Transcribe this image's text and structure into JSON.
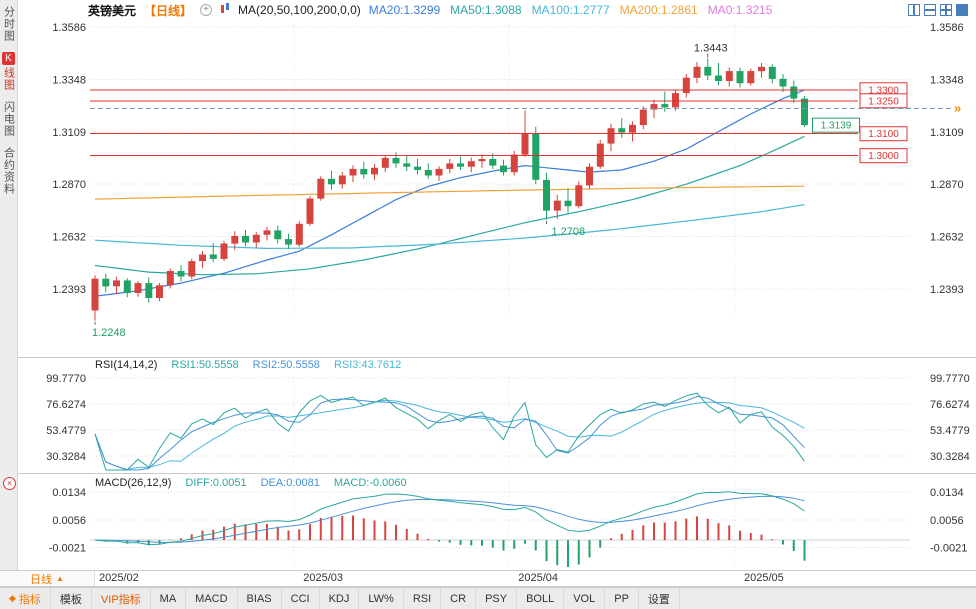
{
  "colors": {
    "up": "#d5443e",
    "down": "#21a366",
    "hline": "#e03333",
    "dashed": "#8096ad",
    "marker_orange": "#f08c00",
    "grid": "#dcdcdc",
    "axis_text": "#333333"
  },
  "header": {
    "symbol": "英镑美元",
    "timeframe": "【日线】",
    "ma_formula": "MA(20,50,100,200,0,0)",
    "ma_values": [
      {
        "name": "MA20",
        "label": "MA20:1.3299",
        "color": "#3b7dd8"
      },
      {
        "name": "MA50",
        "label": "MA50:1.3088",
        "color": "#2aa7a0"
      },
      {
        "name": "MA100",
        "label": "MA100:1.2777",
        "color": "#49b8d8"
      },
      {
        "name": "MA200",
        "label": "MA200:1.2861",
        "color": "#f2a23c"
      },
      {
        "name": "MA0",
        "label": "MA0:1.3215",
        "color": "#e07ae0"
      }
    ]
  },
  "sidebar": {
    "items": [
      {
        "key": "time-chart",
        "label": "分时图",
        "active": false
      },
      {
        "key": "kline-chart",
        "label": "K线图",
        "active": true
      },
      {
        "key": "lightning-chart",
        "label": "闪电图",
        "active": false
      },
      {
        "key": "contract-info",
        "label": "合约资料",
        "active": false
      }
    ]
  },
  "rsi_header": {
    "formula": "RSI(14,14,2)",
    "rsi1": "RSI1:50.5558",
    "rsi2": "RSI2:50.5558",
    "rsi3": "RSI3:43.7612"
  },
  "macd_header": {
    "formula": "MACD(26,12,9)",
    "diff": "DIFF:0.0051",
    "dea": "DEA:0.0081",
    "macd": "MACD:-0.0060"
  },
  "bottom": {
    "tf_label": "日线"
  },
  "toolbar": {
    "items": [
      {
        "key": "indicators",
        "label": "指标",
        "style": "active"
      },
      {
        "key": "templates",
        "label": "模板",
        "style": ""
      },
      {
        "key": "vip-indicators",
        "label": "VIP指标",
        "style": "vip"
      },
      {
        "key": "ma",
        "label": "MA",
        "style": ""
      },
      {
        "key": "macd",
        "label": "MACD",
        "style": ""
      },
      {
        "key": "bias",
        "label": "BIAS",
        "style": ""
      },
      {
        "key": "cci",
        "label": "CCI",
        "style": ""
      },
      {
        "key": "kdj",
        "label": "KDJ",
        "style": ""
      },
      {
        "key": "lw",
        "label": "LW%",
        "style": ""
      },
      {
        "key": "rsi",
        "label": "RSI",
        "style": ""
      },
      {
        "key": "cr",
        "label": "CR",
        "style": ""
      },
      {
        "key": "psy",
        "label": "PSY",
        "style": ""
      },
      {
        "key": "boll",
        "label": "BOLL",
        "style": ""
      },
      {
        "key": "vol",
        "label": "VOL",
        "style": ""
      },
      {
        "key": "pp",
        "label": "PP",
        "style": ""
      },
      {
        "key": "settings",
        "label": "设置",
        "style": ""
      }
    ]
  },
  "chart_data": {
    "type": "candlestick",
    "symbol": "英镑美元 (GBP/USD)",
    "timeframe": "日线",
    "x_labels": [
      "2025/02",
      "2025/03",
      "2025/04",
      "2025/05"
    ],
    "x_label_indices": [
      0,
      19,
      39,
      60
    ],
    "main": {
      "axis_levels": [
        "1.3586",
        "1.3348",
        "1.3109",
        "1.2870",
        "1.2632",
        "1.2393"
      ],
      "hlines": [
        1.33,
        1.325,
        1.31,
        1.3
      ],
      "dashed_line": 1.3215,
      "current_price": 1.3139,
      "annotations": [
        {
          "i": 57,
          "v": 1.3443,
          "pos": "above",
          "color": "#333333"
        },
        {
          "i": 0,
          "v": 1.2248,
          "pos": "below",
          "color": "#1f9e63"
        },
        {
          "i": 42,
          "v": 1.2708,
          "pos": "below",
          "color": "#1f9e63"
        }
      ],
      "candles": [
        [
          1.2295,
          1.2455,
          1.2248,
          1.244
        ],
        [
          1.244,
          1.2462,
          1.2378,
          1.2405
        ],
        [
          1.2405,
          1.2448,
          1.2372,
          1.2432
        ],
        [
          1.2432,
          1.2442,
          1.2355,
          1.2375
        ],
        [
          1.2375,
          1.243,
          1.2358,
          1.242
        ],
        [
          1.242,
          1.2446,
          1.233,
          1.2352
        ],
        [
          1.2352,
          1.242,
          1.2338,
          1.241
        ],
        [
          1.241,
          1.2486,
          1.2396,
          1.2475
        ],
        [
          1.2475,
          1.2502,
          1.2428,
          1.245
        ],
        [
          1.245,
          1.2532,
          1.2438,
          1.252
        ],
        [
          1.252,
          1.2566,
          1.2488,
          1.255
        ],
        [
          1.255,
          1.2602,
          1.2515,
          1.253
        ],
        [
          1.253,
          1.2612,
          1.252,
          1.26
        ],
        [
          1.26,
          1.2656,
          1.257,
          1.2635
        ],
        [
          1.2635,
          1.2662,
          1.2588,
          1.2605
        ],
        [
          1.2605,
          1.2652,
          1.258,
          1.264
        ],
        [
          1.264,
          1.2676,
          1.2614,
          1.266
        ],
        [
          1.266,
          1.2682,
          1.26,
          1.262
        ],
        [
          1.262,
          1.2645,
          1.2575,
          1.2595
        ],
        [
          1.2595,
          1.2702,
          1.2585,
          1.269
        ],
        [
          1.269,
          1.2816,
          1.268,
          1.2805
        ],
        [
          1.2805,
          1.2906,
          1.2795,
          1.2895
        ],
        [
          1.2895,
          1.2932,
          1.2845,
          1.287
        ],
        [
          1.287,
          1.2926,
          1.285,
          1.291
        ],
        [
          1.291,
          1.2956,
          1.288,
          1.294
        ],
        [
          1.294,
          1.2972,
          1.2895,
          1.2915
        ],
        [
          1.2915,
          1.2962,
          1.289,
          1.2945
        ],
        [
          1.2945,
          1.3002,
          1.2925,
          1.299
        ],
        [
          1.299,
          1.3016,
          1.2945,
          1.2965
        ],
        [
          1.2965,
          1.3,
          1.293,
          1.295
        ],
        [
          1.295,
          1.2986,
          1.2915,
          1.2935
        ],
        [
          1.2935,
          1.2966,
          1.2895,
          1.291
        ],
        [
          1.291,
          1.2952,
          1.2885,
          1.294
        ],
        [
          1.294,
          1.2986,
          1.292,
          1.2965
        ],
        [
          1.2965,
          1.2996,
          1.2935,
          1.295
        ],
        [
          1.295,
          1.2992,
          1.2925,
          1.2975
        ],
        [
          1.2975,
          1.3006,
          1.2945,
          1.2985
        ],
        [
          1.2985,
          1.3012,
          1.294,
          1.2955
        ],
        [
          1.2955,
          1.2982,
          1.291,
          1.2925
        ],
        [
          1.2925,
          1.3022,
          1.291,
          1.3005
        ],
        [
          1.3005,
          1.3207,
          1.2995,
          1.31
        ],
        [
          1.31,
          1.3132,
          1.287,
          1.289
        ],
        [
          1.289,
          1.2922,
          1.2708,
          1.275
        ],
        [
          1.275,
          1.2822,
          1.2712,
          1.2795
        ],
        [
          1.2795,
          1.2852,
          1.274,
          1.277
        ],
        [
          1.277,
          1.2882,
          1.276,
          1.2865
        ],
        [
          1.2865,
          1.2966,
          1.285,
          1.295
        ],
        [
          1.295,
          1.3072,
          1.294,
          1.3055
        ],
        [
          1.3055,
          1.3146,
          1.302,
          1.3125
        ],
        [
          1.3125,
          1.3172,
          1.308,
          1.3105
        ],
        [
          1.3105,
          1.3156,
          1.3065,
          1.314
        ],
        [
          1.314,
          1.3226,
          1.312,
          1.321
        ],
        [
          1.321,
          1.3256,
          1.317,
          1.3235
        ],
        [
          1.3235,
          1.3292,
          1.32,
          1.322
        ],
        [
          1.322,
          1.3302,
          1.3205,
          1.3285
        ],
        [
          1.3285,
          1.3372,
          1.3265,
          1.3355
        ],
        [
          1.3355,
          1.3426,
          1.333,
          1.3405
        ],
        [
          1.3405,
          1.3443,
          1.3345,
          1.3365
        ],
        [
          1.3365,
          1.3422,
          1.332,
          1.334
        ],
        [
          1.334,
          1.3402,
          1.3315,
          1.3385
        ],
        [
          1.3385,
          1.3402,
          1.331,
          1.333
        ],
        [
          1.333,
          1.3396,
          1.332,
          1.3385
        ],
        [
          1.3385,
          1.3422,
          1.3355,
          1.3405
        ],
        [
          1.3405,
          1.3416,
          1.333,
          1.335
        ],
        [
          1.335,
          1.3372,
          1.329,
          1.3315
        ],
        [
          1.3315,
          1.3342,
          1.324,
          1.326
        ],
        [
          1.326,
          1.3272,
          1.313,
          1.3139
        ]
      ],
      "ma_lines": [
        {
          "name": "MA20",
          "color": "#3b7dd8",
          "points": [
            [
              0,
              1.236
            ],
            [
              4,
              1.2385
            ],
            [
              8,
              1.242
            ],
            [
              12,
              1.2465
            ],
            [
              16,
              1.2525
            ],
            [
              19,
              1.2565
            ],
            [
              22,
              1.264
            ],
            [
              25,
              1.272
            ],
            [
              28,
              1.28
            ],
            [
              31,
              1.286
            ],
            [
              34,
              1.29
            ],
            [
              37,
              1.293
            ],
            [
              40,
              1.2955
            ],
            [
              43,
              1.294
            ],
            [
              46,
              1.2925
            ],
            [
              49,
              1.2935
            ],
            [
              52,
              1.2975
            ],
            [
              55,
              1.303
            ],
            [
              58,
              1.311
            ],
            [
              61,
              1.319
            ],
            [
              64,
              1.326
            ],
            [
              66,
              1.3299
            ]
          ]
        },
        {
          "name": "MA50",
          "color": "#2aa7a0",
          "points": [
            [
              0,
              1.25
            ],
            [
              5,
              1.247
            ],
            [
              10,
              1.2458
            ],
            [
              15,
              1.2462
            ],
            [
              20,
              1.2485
            ],
            [
              25,
              1.2525
            ],
            [
              30,
              1.2575
            ],
            [
              35,
              1.2635
            ],
            [
              40,
              1.2695
            ],
            [
              45,
              1.2745
            ],
            [
              50,
              1.28
            ],
            [
              55,
              1.287
            ],
            [
              60,
              1.2955
            ],
            [
              63,
              1.302
            ],
            [
              66,
              1.3088
            ]
          ]
        },
        {
          "name": "MA100",
          "color": "#49b8d8",
          "points": [
            [
              0,
              1.2615
            ],
            [
              8,
              1.2592
            ],
            [
              16,
              1.2578
            ],
            [
              24,
              1.258
            ],
            [
              32,
              1.2598
            ],
            [
              40,
              1.2625
            ],
            [
              48,
              1.2662
            ],
            [
              56,
              1.2708
            ],
            [
              62,
              1.2745
            ],
            [
              66,
              1.2777
            ]
          ]
        },
        {
          "name": "MA200",
          "color": "#f2a23c",
          "points": [
            [
              0,
              1.2802
            ],
            [
              12,
              1.2816
            ],
            [
              24,
              1.2828
            ],
            [
              36,
              1.284
            ],
            [
              48,
              1.285
            ],
            [
              58,
              1.2857
            ],
            [
              66,
              1.2861
            ]
          ]
        }
      ]
    },
    "rsi": {
      "levels": [
        "99.7770",
        "76.6274",
        "53.4779",
        "30.3284"
      ],
      "line_colors": [
        "#2aa7a0",
        "#4a90d9",
        "#49b8d8"
      ]
    },
    "macd": {
      "levels": [
        "0.0134",
        "0.0056",
        "-0.0021"
      ],
      "diff_color": "#2aa7a0",
      "dea_color": "#4a90d9"
    }
  }
}
